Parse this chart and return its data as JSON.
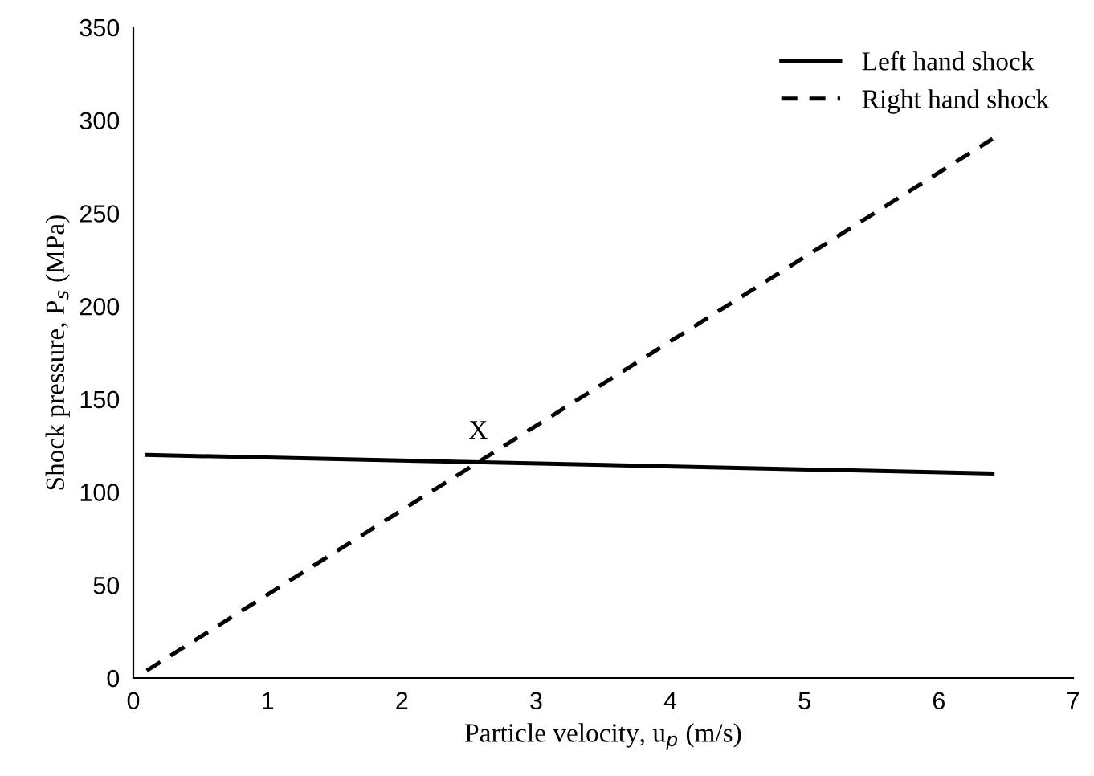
{
  "chart_data": {
    "type": "line",
    "xlabel": "Particle velocity, u$_{p}$ (m/s)",
    "ylabel": "Shock pressure, P$_{s}$ (MPa)",
    "xlim": [
      0,
      7
    ],
    "xticks": [
      0,
      1,
      2,
      3,
      4,
      5,
      6,
      7
    ],
    "ylim": [
      0,
      350
    ],
    "yticks": [
      0,
      50,
      100,
      150,
      200,
      250,
      300,
      350
    ],
    "x": [
      0.1,
      6.4
    ],
    "grid": false,
    "legend": "top right",
    "marker": "none",
    "series": [
      {
        "name": "Left hand shock",
        "color": "#000000",
        "line_style": "solid",
        "values": [
          120,
          110
        ]
      },
      {
        "name": "Right hand shock",
        "color": "#000000",
        "line_style": "dashed",
        "values": [
          4,
          290
        ]
      }
    ],
    "annotations": [
      "X"
    ]
  }
}
